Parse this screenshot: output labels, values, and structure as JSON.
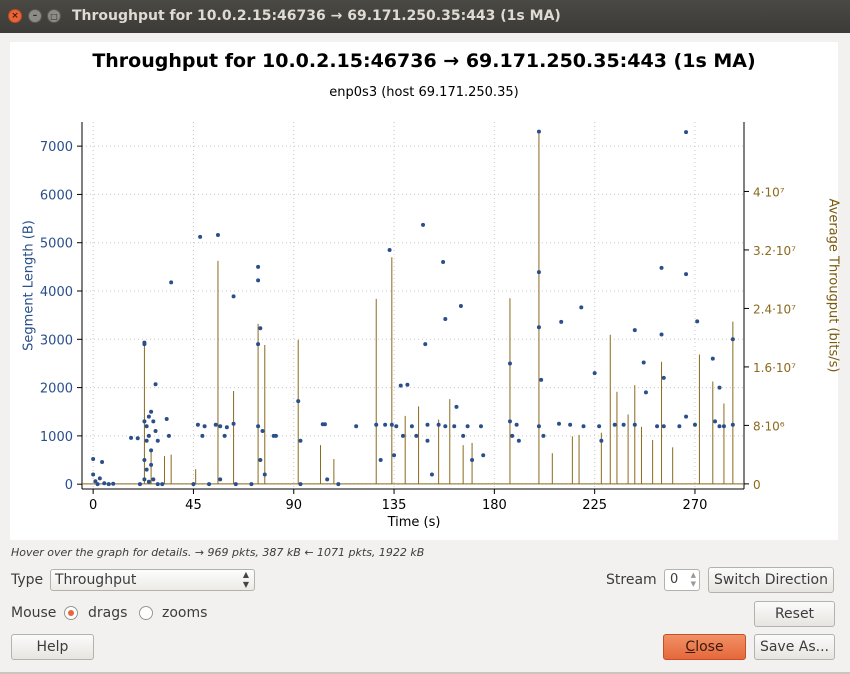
{
  "window": {
    "title": "Throughput for 10.0.2.15:46736 → 69.171.250.35:443 (1s MA)",
    "close_glyph": "×",
    "min_glyph": "–",
    "max_glyph": "□"
  },
  "chart": {
    "title": "Throughput for 10.0.2.15:46736 → 69.171.250.35:443 (1s MA)",
    "subtitle": "enp0s3 (host 69.171.250.35)",
    "y_left_label": "Segment Length (B)",
    "y_right_label": "Average Througput (bits/s)",
    "x_label": "Time (s)",
    "x_ticks": [
      "0",
      "45",
      "90",
      "135",
      "180",
      "225",
      "270"
    ],
    "y_left_ticks": [
      "0",
      "1000",
      "2000",
      "3000",
      "4000",
      "5000",
      "6000",
      "7000"
    ],
    "y_right_ticks": [
      "0",
      "8·10⁶",
      "1.6·10⁷",
      "2.4·10⁷",
      "3.2·10⁷",
      "4·10⁷"
    ],
    "colors": {
      "segment": "#2a4f8a",
      "throughput": "#8a6a1c",
      "grid": "#c8c8c8"
    }
  },
  "chart_data": {
    "type": "scatter",
    "title": "Throughput for 10.0.2.15:46736 → 69.171.250.35:443 (1s MA)",
    "subtitle": "enp0s3 (host 69.171.250.35)",
    "xlabel": "Time (s)",
    "ylabel": "Segment Length (B)",
    "y2label": "Average Througput (bits/s)",
    "xlim": [
      -5,
      292
    ],
    "ylim": [
      -100,
      7500
    ],
    "y2lim": [
      -700000,
      49500000
    ],
    "grid": true,
    "series": [
      {
        "name": "Segment Length (B)",
        "type": "scatter",
        "points": [
          [
            0,
            520
          ],
          [
            0,
            200
          ],
          [
            1,
            60
          ],
          [
            2,
            0
          ],
          [
            3,
            120
          ],
          [
            4,
            460
          ],
          [
            5,
            20
          ],
          [
            7,
            0
          ],
          [
            9,
            10
          ],
          [
            17,
            960
          ],
          [
            20,
            950
          ],
          [
            21,
            0
          ],
          [
            23,
            2930
          ],
          [
            23,
            2900
          ],
          [
            23,
            1300
          ],
          [
            23,
            500
          ],
          [
            23,
            100
          ],
          [
            24,
            1200
          ],
          [
            24,
            900
          ],
          [
            24,
            300
          ],
          [
            25,
            1400
          ],
          [
            25,
            1000
          ],
          [
            25,
            50
          ],
          [
            26,
            1500
          ],
          [
            26,
            700
          ],
          [
            26,
            400
          ],
          [
            27,
            1300
          ],
          [
            27,
            100
          ],
          [
            28,
            2070
          ],
          [
            28,
            1100
          ],
          [
            29,
            900
          ],
          [
            29,
            0
          ],
          [
            31,
            0
          ],
          [
            33,
            1350
          ],
          [
            34,
            1000
          ],
          [
            35,
            4180
          ],
          [
            45,
            0
          ],
          [
            47,
            1230
          ],
          [
            48,
            5120
          ],
          [
            49,
            1000
          ],
          [
            50,
            1200
          ],
          [
            52,
            0
          ],
          [
            55,
            1230
          ],
          [
            56,
            5160
          ],
          [
            57,
            1200
          ],
          [
            57,
            100
          ],
          [
            59,
            1000
          ],
          [
            60,
            1180
          ],
          [
            63,
            3890
          ],
          [
            63,
            1250
          ],
          [
            64,
            0
          ],
          [
            71,
            0
          ],
          [
            74,
            4500
          ],
          [
            74,
            4220
          ],
          [
            74,
            2900
          ],
          [
            74,
            1200
          ],
          [
            75,
            3230
          ],
          [
            75,
            500
          ],
          [
            76,
            1100
          ],
          [
            77,
            200
          ],
          [
            81,
            1000
          ],
          [
            82,
            1000
          ],
          [
            92,
            1720
          ],
          [
            93,
            900
          ],
          [
            93,
            0
          ],
          [
            103,
            1240
          ],
          [
            104,
            1240
          ],
          [
            105,
            100
          ],
          [
            110,
            0
          ],
          [
            118,
            1200
          ],
          [
            127,
            1230
          ],
          [
            129,
            500
          ],
          [
            131,
            1230
          ],
          [
            133,
            4850
          ],
          [
            134,
            1230
          ],
          [
            135,
            600
          ],
          [
            136,
            1200
          ],
          [
            138,
            2040
          ],
          [
            139,
            1000
          ],
          [
            141,
            2060
          ],
          [
            143,
            1200
          ],
          [
            145,
            1000
          ],
          [
            148,
            5370
          ],
          [
            149,
            2900
          ],
          [
            150,
            1230
          ],
          [
            150,
            900
          ],
          [
            152,
            200
          ],
          [
            155,
            1230
          ],
          [
            157,
            4600
          ],
          [
            158,
            3420
          ],
          [
            158,
            1200
          ],
          [
            162,
            1200
          ],
          [
            163,
            1600
          ],
          [
            165,
            3690
          ],
          [
            166,
            1000
          ],
          [
            168,
            1200
          ],
          [
            170,
            500
          ],
          [
            174,
            1200
          ],
          [
            175,
            600
          ],
          [
            187,
            2500
          ],
          [
            187,
            1300
          ],
          [
            188,
            1000
          ],
          [
            190,
            1230
          ],
          [
            191,
            900
          ],
          [
            200,
            7300
          ],
          [
            200,
            4390
          ],
          [
            200,
            3250
          ],
          [
            200,
            1200
          ],
          [
            201,
            2160
          ],
          [
            202,
            1000
          ],
          [
            209,
            1250
          ],
          [
            210,
            3360
          ],
          [
            214,
            1230
          ],
          [
            219,
            3660
          ],
          [
            220,
            1200
          ],
          [
            225,
            2300
          ],
          [
            227,
            1200
          ],
          [
            228,
            900
          ],
          [
            234,
            1230
          ],
          [
            238,
            1230
          ],
          [
            243,
            3190
          ],
          [
            243,
            1230
          ],
          [
            247,
            2520
          ],
          [
            248,
            1900
          ],
          [
            253,
            1200
          ],
          [
            255,
            4480
          ],
          [
            255,
            3100
          ],
          [
            256,
            1200
          ],
          [
            256,
            2200
          ],
          [
            263,
            1200
          ],
          [
            266,
            4350
          ],
          [
            266,
            7290
          ],
          [
            266,
            1400
          ],
          [
            270,
            1230
          ],
          [
            271,
            3370
          ],
          [
            278,
            2600
          ],
          [
            279,
            1300
          ],
          [
            281,
            2000
          ],
          [
            281,
            1200
          ],
          [
            283,
            1200
          ],
          [
            287,
            3000
          ],
          [
            287,
            1230
          ]
        ]
      },
      {
        "name": "Average Througput (bits/s)",
        "type": "impulse",
        "points": [
          [
            23,
            19200000
          ],
          [
            26,
            4500000
          ],
          [
            32,
            3800000
          ],
          [
            35,
            4000000
          ],
          [
            46,
            2000000
          ],
          [
            56,
            30500000
          ],
          [
            63,
            12700000
          ],
          [
            74,
            21900000
          ],
          [
            77,
            19000000
          ],
          [
            92,
            19700000
          ],
          [
            102,
            5300000
          ],
          [
            108,
            3400000
          ],
          [
            127,
            25300000
          ],
          [
            134,
            31000000
          ],
          [
            140,
            9300000
          ],
          [
            146,
            10600000
          ],
          [
            155,
            8800000
          ],
          [
            160,
            11600000
          ],
          [
            166,
            5300000
          ],
          [
            170,
            5600000
          ],
          [
            187,
            25400000
          ],
          [
            200,
            47900000
          ],
          [
            206,
            4200000
          ],
          [
            215,
            6500000
          ],
          [
            218,
            6700000
          ],
          [
            228,
            7000000
          ],
          [
            232,
            20400000
          ],
          [
            235,
            12600000
          ],
          [
            240,
            9500000
          ],
          [
            243,
            13500000
          ],
          [
            246,
            7800000
          ],
          [
            251,
            6000000
          ],
          [
            255,
            16700000
          ],
          [
            260,
            5000000
          ],
          [
            272,
            17700000
          ],
          [
            278,
            14000000
          ],
          [
            283,
            11000000
          ],
          [
            287,
            22200000
          ]
        ]
      }
    ],
    "x_ticks": [
      0,
      45,
      90,
      135,
      180,
      225,
      270
    ],
    "y_ticks": [
      0,
      1000,
      2000,
      3000,
      4000,
      5000,
      6000,
      7000
    ],
    "y2_ticks": [
      0,
      8000000,
      16000000,
      24000000,
      32000000,
      40000000
    ]
  },
  "status": {
    "hint": "Hover over the graph for details. → 969 pkts, 387 kB ← 1071 pkts, 1922 kB"
  },
  "controls": {
    "type_label": "Type",
    "type_value": "Throughput",
    "stream_label": "Stream",
    "stream_value": "0",
    "switch_direction": "Switch Direction",
    "mouse_label": "Mouse",
    "mouse_options": [
      "drags",
      "zooms"
    ],
    "mouse_selected": "drags",
    "reset": "Reset",
    "help": "Help",
    "close_first": "C",
    "close_rest": "lose",
    "save_as": "Save As..."
  }
}
